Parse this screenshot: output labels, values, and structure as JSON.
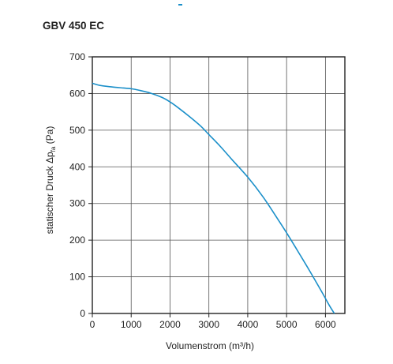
{
  "chart_data": {
    "type": "line",
    "title": "GBV 450 EC",
    "xlabel": "Volumenstrom (m³/h)",
    "ylabel": {
      "main": "statischer Druck Δp",
      "subscript": "fa",
      "unit": " (Pa)"
    },
    "xlim": [
      0,
      6500
    ],
    "ylim": [
      0,
      700
    ],
    "x_ticks": [
      0,
      1000,
      2000,
      3000,
      4000,
      5000,
      6000
    ],
    "y_ticks": [
      0,
      100,
      200,
      300,
      400,
      500,
      600,
      700
    ],
    "grid": true,
    "series": [
      {
        "color": "#1a8fc9",
        "x": [
          0,
          200,
          500,
          800,
          1000,
          1200,
          1500,
          1800,
          2000,
          2200,
          2500,
          2800,
          3000,
          3300,
          3600,
          4000,
          4400,
          4800,
          5000,
          5300,
          5600,
          5900,
          6100,
          6230
        ],
        "y": [
          628,
          622,
          618,
          615,
          613,
          609,
          601,
          589,
          577,
          562,
          537,
          510,
          488,
          455,
          419,
          372,
          317,
          253,
          220,
          168,
          115,
          60,
          22,
          0
        ]
      }
    ]
  },
  "colors": {
    "curve": "#1a8fc9",
    "grid": "#555555",
    "text": "#222222"
  }
}
